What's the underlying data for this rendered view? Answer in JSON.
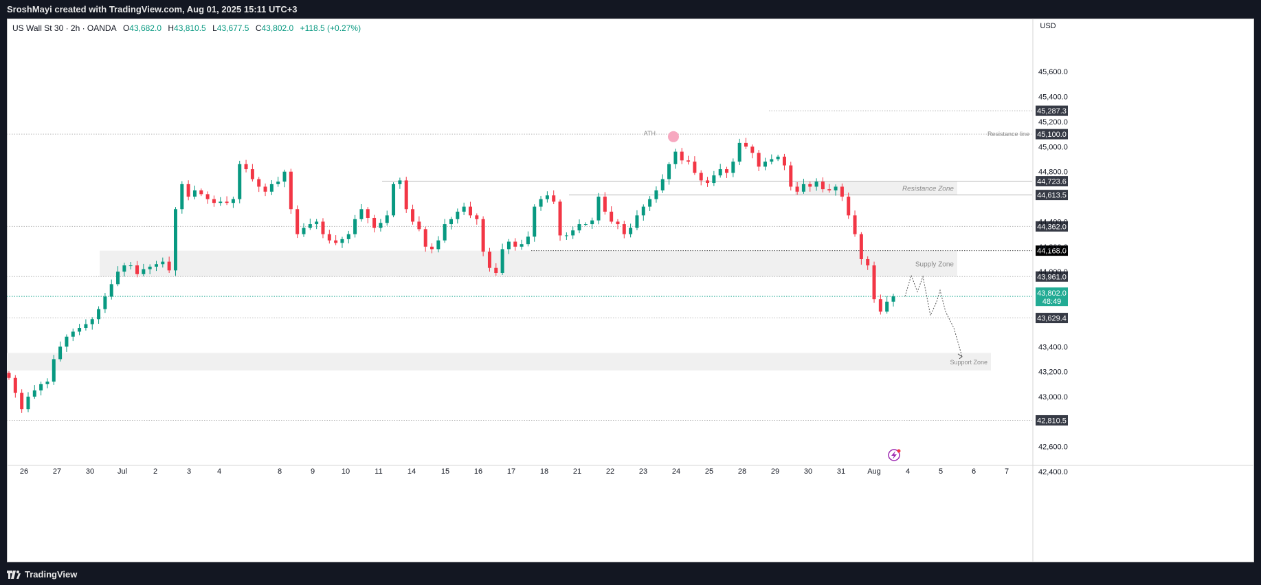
{
  "header": {
    "attribution": "SroshMayi created with TradingView.com, Aug 01, 2025 15:11 UTC+3"
  },
  "footer": {
    "brand": "TradingView"
  },
  "legend": {
    "symbol": "US Wall St 30 · 2h · OANDA",
    "open_label": "O",
    "open": "43,682.0",
    "high_label": "H",
    "high": "43,810.5",
    "low_label": "L",
    "low": "43,677.5",
    "close_label": "C",
    "close": "43,802.0",
    "change": "+118.5 (+0.27%)"
  },
  "colors": {
    "up": "#089981",
    "down": "#f23645",
    "zone_fill": "#f0f0f0",
    "level_line": "#b8b8b8",
    "annotation_text": "#8a8a8a",
    "label_dark": "#363a45",
    "label_black": "#000000",
    "price_tag": "#22ab94",
    "ath_marker": "#f7a8c0"
  },
  "chart_data": {
    "type": "candlestick",
    "currency": "USD",
    "x_ticks": [
      "26",
      "27",
      "30",
      "Jul",
      "2",
      "3",
      "4",
      "8",
      "9",
      "10",
      "11",
      "14",
      "15",
      "16",
      "17",
      "18",
      "21",
      "22",
      "23",
      "24",
      "25",
      "28",
      "29",
      "30",
      "31",
      "Aug",
      "4",
      "5",
      "6",
      "7"
    ],
    "y_ticks": [
      "45,600.0",
      "45,400.0",
      "45,200.0",
      "45,000.0",
      "44,800.0",
      "44,400.0",
      "44,200.0",
      "44,000.0",
      "43,400.0",
      "43,200.0",
      "43,000.0",
      "42,600.0",
      "42,400.0"
    ],
    "y_tick_values": [
      45600,
      45400,
      45200,
      45000,
      44800,
      44400,
      44200,
      44000,
      43400,
      43200,
      43000,
      42600,
      42400
    ],
    "ylim": [
      42300,
      45800
    ],
    "levels": [
      {
        "label": "45,287.3",
        "value": 45287.3,
        "style": "dark"
      },
      {
        "label": "45,100.0",
        "value": 45100.0,
        "style": "dark",
        "annotation": "Resistance line"
      },
      {
        "label": "44,723.6",
        "value": 44723.6,
        "style": "dark"
      },
      {
        "label": "44,613.5",
        "value": 44613.5,
        "style": "dark"
      },
      {
        "label": "44,362.0",
        "value": 44362.0,
        "style": "dark"
      },
      {
        "label": "44,168.0",
        "value": 44168.0,
        "style": "black"
      },
      {
        "label": "43,961.0",
        "value": 43961.0,
        "style": "dark"
      },
      {
        "label": "43,629.4",
        "value": 43629.4,
        "style": "dark"
      },
      {
        "label": "42,810.5",
        "value": 42810.5,
        "style": "dark"
      }
    ],
    "current_price": {
      "label": "43,802.0",
      "countdown": "48:49",
      "value": 43802.0
    },
    "zones": [
      {
        "label": "Resistance Zone",
        "top": 44723.6,
        "bottom": 44613.5
      },
      {
        "label": "Supply Zone",
        "top": 44168.0,
        "bottom": 43961.0
      },
      {
        "label": "Support Zone",
        "top": 43350.0,
        "bottom": 43210.0
      }
    ],
    "annotations": [
      {
        "label": "ATH",
        "value": 45080
      }
    ],
    "closes": [
      43150,
      43030,
      42900,
      43000,
      43050,
      43100,
      43120,
      43300,
      43400,
      43480,
      43520,
      43550,
      43580,
      43620,
      43700,
      43800,
      43900,
      44000,
      44050,
      44050,
      43980,
      44020,
      44040,
      44060,
      44080,
      44010,
      44500,
      44700,
      44600,
      44650,
      44620,
      44580,
      44550,
      44560,
      44550,
      44580,
      44860,
      44820,
      44740,
      44680,
      44640,
      44700,
      44720,
      44800,
      44500,
      44300,
      44350,
      44380,
      44400,
      44300,
      44250,
      44230,
      44260,
      44300,
      44420,
      44500,
      44430,
      44350,
      44390,
      44450,
      44700,
      44730,
      44500,
      44400,
      44340,
      44200,
      44180,
      44250,
      44380,
      44420,
      44480,
      44520,
      44450,
      44420,
      44160,
      44030,
      43990,
      44180,
      44240,
      44200,
      44220,
      44280,
      44520,
      44580,
      44610,
      44560,
      44290,
      44290,
      44330,
      44380,
      44380,
      44410,
      44600,
      44480,
      44400,
      44380,
      44300,
      44350,
      44450,
      44520,
      44580,
      44650,
      44740,
      44860,
      44960,
      44890,
      44880,
      44790,
      44730,
      44710,
      44770,
      44820,
      44790,
      44880,
      45030,
      45000,
      44950,
      44840,
      44880,
      44900,
      44920,
      44850,
      44680,
      44640,
      44700,
      44680,
      44720,
      44660,
      44650,
      44680,
      44600,
      44450,
      44300,
      44100,
      44050,
      43780,
      43680,
      43760,
      43802
    ]
  }
}
